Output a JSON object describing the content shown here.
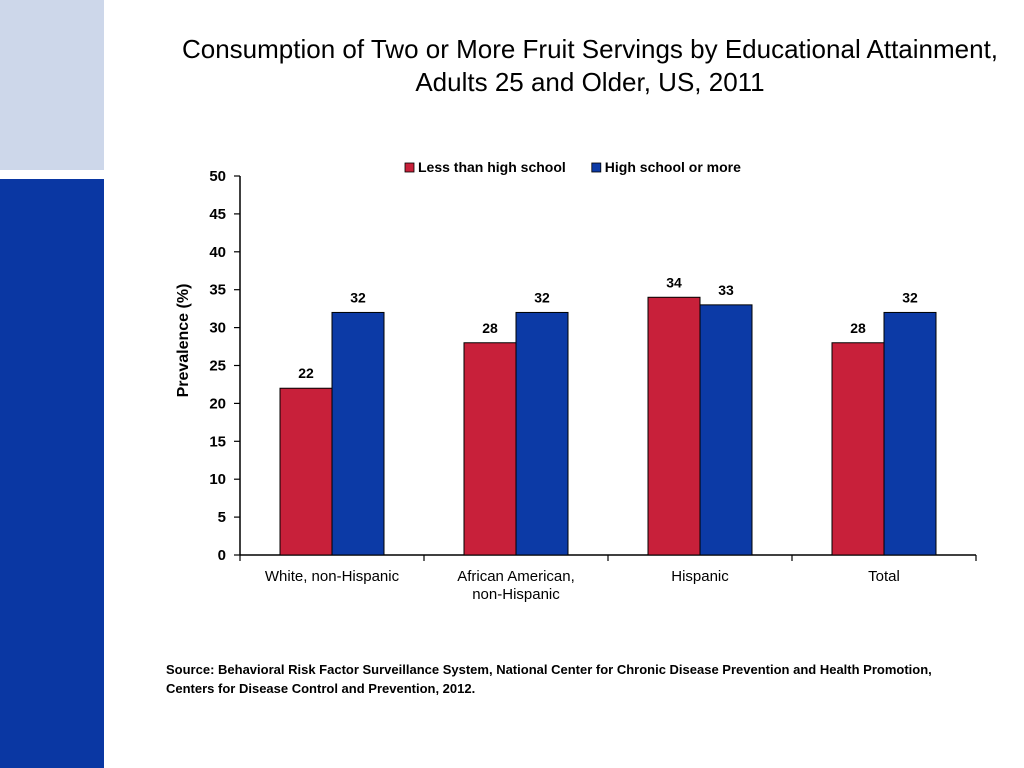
{
  "slide": {
    "title": "Consumption of Two or More Fruit Servings by Educational Attainment, Adults 25 and Older, US, 2011",
    "source": "Source: Behavioral Risk Factor Surveillance System, National Center for Chronic Disease Prevention and Health Promotion, Centers for Disease Control and Prevention, 2012."
  },
  "colors": {
    "sidebar_light": "#cdd7ea",
    "sidebar_dark": "#0a37a3"
  },
  "chart_data": {
    "type": "bar",
    "title": "Consumption of Two or More Fruit Servings by Educational Attainment, Adults 25 and Older, US, 2011",
    "ylabel": "Prevalence (%)",
    "xlabel": "",
    "ylim": [
      0,
      50
    ],
    "yticks": [
      0,
      5,
      10,
      15,
      20,
      25,
      30,
      35,
      40,
      45,
      50
    ],
    "categories": [
      [
        "White, non-Hispanic"
      ],
      [
        "African American,",
        "non-Hispanic"
      ],
      [
        "Hispanic"
      ],
      [
        "Total"
      ]
    ],
    "series": [
      {
        "name": "Less than high school",
        "color": "#c8203a",
        "values": [
          22,
          28,
          34,
          28
        ]
      },
      {
        "name": "High school or more",
        "color": "#0c3aa6",
        "values": [
          32,
          32,
          33,
          32
        ]
      }
    ],
    "legend": "top",
    "grid": false,
    "data_labels": true
  }
}
